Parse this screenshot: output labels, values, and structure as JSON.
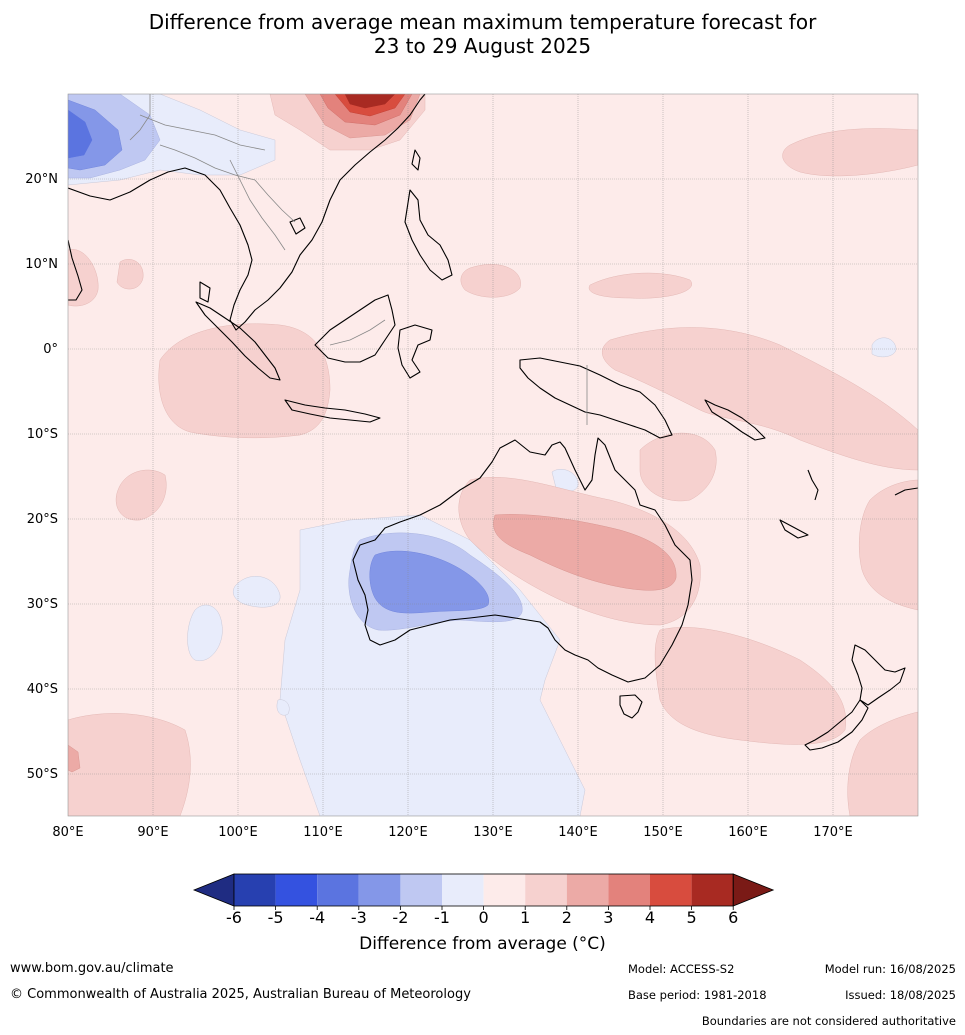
{
  "title_line1": "Difference from average mean maximum temperature forecast for",
  "title_line2": "23 to 29 August 2025",
  "lon_labels": [
    "80°E",
    "90°E",
    "100°E",
    "110°E",
    "120°E",
    "130°E",
    "140°E",
    "150°E",
    "160°E",
    "170°E"
  ],
  "lat_labels": [
    "20°N",
    "10°N",
    "0°",
    "10°S",
    "20°S",
    "30°S",
    "40°S",
    "50°S"
  ],
  "legend": {
    "title": "Difference from average (°C)",
    "ticks": [
      "-6",
      "-5",
      "-4",
      "-3",
      "-2",
      "-1",
      "0",
      "1",
      "2",
      "3",
      "4",
      "5",
      "6"
    ],
    "colors": [
      "#1f2c82",
      "#2740b0",
      "#3452e0",
      "#5b74e0",
      "#8497e8",
      "#bfc8f2",
      "#e8ecfb",
      "#fdebea",
      "#f6d1cf",
      "#ecaaa6",
      "#e3827c",
      "#d84c3e",
      "#a82a22",
      "#7a1a16"
    ]
  },
  "footer": {
    "website": "www.bom.gov.au/climate",
    "copyright": "© Commonwealth of Australia 2025, Australian Bureau of Meteorology",
    "model": "Model: ACCESS-S2",
    "base_period": "Base period: 1981-2018",
    "model_run": "Model run: 16/08/2025",
    "issued": "Issued: 18/08/2025",
    "disclaimer": "Boundaries are not considered authoritative"
  }
}
